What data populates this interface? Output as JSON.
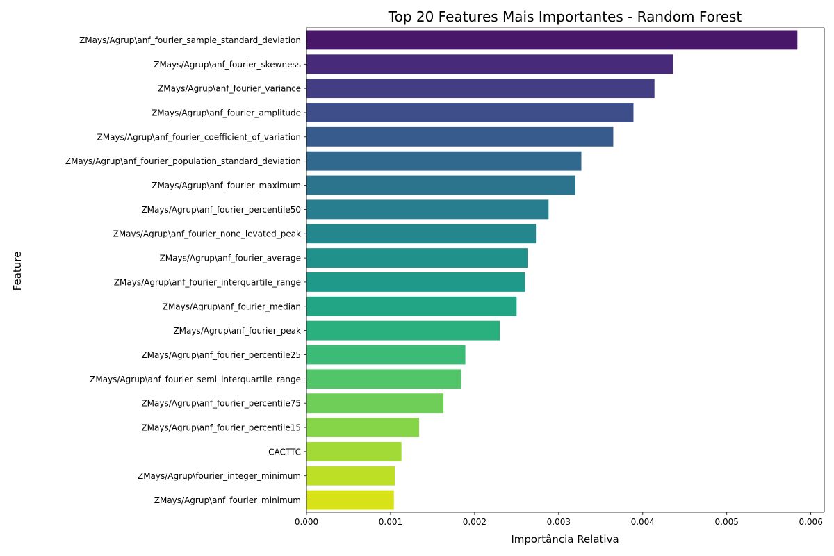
{
  "chart_data": {
    "type": "bar",
    "orientation": "horizontal",
    "title": "Top 20 Features Mais Importantes - Random Forest",
    "xlabel": "Importância Relativa",
    "ylabel": "Feature",
    "xlim": [
      0,
      0.00616
    ],
    "xticks": [
      0,
      0.001,
      0.002,
      0.003,
      0.004,
      0.005,
      0.006
    ],
    "xtick_labels": [
      "0.000",
      "0.001",
      "0.002",
      "0.003",
      "0.004",
      "0.005",
      "0.006"
    ],
    "grid": false,
    "colormap": "viridis",
    "categories": [
      "ZMays/Agrup\\anf_fourier_sample_standard_deviation",
      "ZMays/Agrup\\anf_fourier_skewness",
      "ZMays/Agrup\\anf_fourier_variance",
      "ZMays/Agrup\\anf_fourier_amplitude",
      "ZMays/Agrup\\anf_fourier_coefficient_of_variation",
      "ZMays/Agrup\\anf_fourier_population_standard_deviation",
      "ZMays/Agrup\\anf_fourier_maximum",
      "ZMays/Agrup\\anf_fourier_percentile50",
      "ZMays/Agrup\\anf_fourier_none_levated_peak",
      "ZMays/Agrup\\anf_fourier_average",
      "ZMays/Agrup\\anf_fourier_interquartile_range",
      "ZMays/Agrup\\anf_fourier_median",
      "ZMays/Agrup\\anf_fourier_peak",
      "ZMays/Agrup\\anf_fourier_percentile25",
      "ZMays/Agrup\\anf_fourier_semi_interquartile_range",
      "ZMays/Agrup\\anf_fourier_percentile75",
      "ZMays/Agrup\\anf_fourier_percentile15",
      "CACTTC",
      "ZMays/Agrup\\fourier_integer_minimum",
      "ZMays/Agrup\\anf_fourier_minimum"
    ],
    "values": [
      0.00584,
      0.00436,
      0.00414,
      0.00389,
      0.00365,
      0.00327,
      0.0032,
      0.00288,
      0.00273,
      0.00263,
      0.0026,
      0.0025,
      0.0023,
      0.00189,
      0.00184,
      0.00163,
      0.00134,
      0.00113,
      0.00105,
      0.00104
    ],
    "colors": [
      "#481769",
      "#472a7a",
      "#433d84",
      "#3d4e8a",
      "#375b8d",
      "#31688e",
      "#2c738e",
      "#287d8e",
      "#24878e",
      "#21918c",
      "#1f9a8a",
      "#21a585",
      "#2aaf7f",
      "#3bbb75",
      "#52c569",
      "#6ece58",
      "#86d549",
      "#a2da37",
      "#bddf26",
      "#d8e219"
    ]
  }
}
